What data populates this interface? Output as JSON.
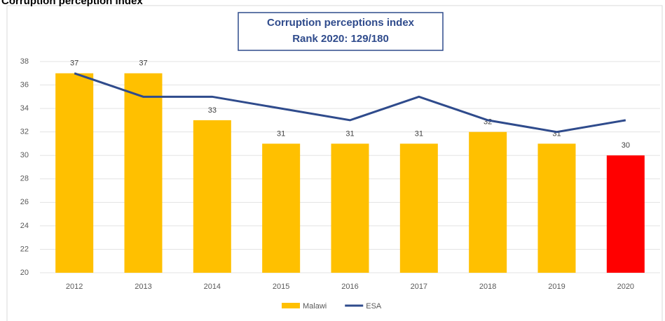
{
  "chart_data": {
    "type": "bar",
    "title": "Corruption perception index",
    "box_title": [
      "Corruption perceptions index",
      "Rank 2020: 129/180"
    ],
    "categories": [
      "2012",
      "2013",
      "2014",
      "2015",
      "2016",
      "2017",
      "2018",
      "2019",
      "2020"
    ],
    "series": [
      {
        "name": "Malawi",
        "type": "bar",
        "color": "#ffc000",
        "colors": [
          "#ffc000",
          "#ffc000",
          "#ffc000",
          "#ffc000",
          "#ffc000",
          "#ffc000",
          "#ffc000",
          "#ffc000",
          "#ff0000"
        ],
        "values": [
          37,
          37,
          33,
          31,
          31,
          31,
          32,
          31,
          30
        ]
      },
      {
        "name": "ESA",
        "type": "line",
        "color": "#2f4b8c",
        "values": [
          37,
          35,
          35,
          34,
          33,
          35,
          33,
          32,
          33
        ]
      }
    ],
    "ylim": [
      20,
      38
    ],
    "yticks": [
      20,
      22,
      24,
      26,
      28,
      30,
      32,
      34,
      36,
      38
    ],
    "grid": true,
    "legend": "bottom"
  }
}
